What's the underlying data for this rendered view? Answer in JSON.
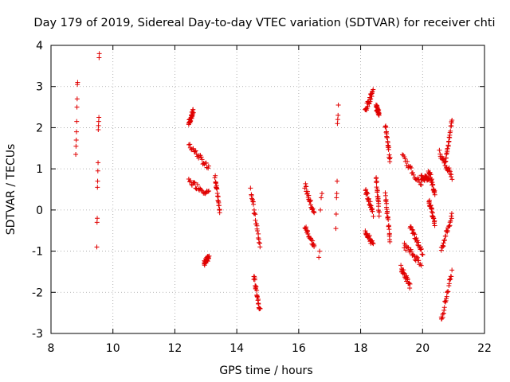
{
  "chart_data": {
    "type": "scatter",
    "title": "Day 179 of 2019, Sidereal Day-to-day VTEC variation (SDTVAR) for receiver chti",
    "xlabel": "GPS time / hours",
    "ylabel": "SDTVAR / TECUs",
    "xlim": [
      8,
      22
    ],
    "ylim": [
      -3,
      4
    ],
    "xticks": [
      8,
      10,
      12,
      14,
      16,
      18,
      20,
      22
    ],
    "yticks": [
      -3,
      -2,
      -1,
      0,
      1,
      2,
      3,
      4
    ],
    "grid": true,
    "marker": "plus",
    "color": "#e00000",
    "segments": [
      {
        "x0": 8.8,
        "x1": 8.86,
        "y": [
          1.35,
          1.55,
          1.7,
          1.9,
          2.15,
          2.5,
          2.7,
          3.05,
          3.1
        ]
      },
      {
        "x0": 9.48,
        "x1": 9.56,
        "y": [
          -0.9,
          -0.3,
          -0.2,
          0.55,
          0.7,
          0.95,
          1.15,
          1.95,
          2.05,
          2.15,
          2.25,
          3.7,
          3.8
        ]
      },
      {
        "x0": 12.45,
        "x1": 12.6,
        "from": 2.1,
        "to": 2.4
      },
      {
        "x0": 12.45,
        "x1": 13.1,
        "from": 1.6,
        "to": 1.0
      },
      {
        "x0": 12.45,
        "x1": 13.1,
        "from": 0.7,
        "to": 0.4
      },
      {
        "x0": 12.95,
        "x1": 13.1,
        "from": -1.3,
        "to": -1.15
      },
      {
        "x0": 13.3,
        "x1": 13.45,
        "from": 0.8,
        "to": 0.0
      },
      {
        "x0": 14.45,
        "x1": 14.75,
        "from": 0.5,
        "to": -0.9
      },
      {
        "x0": 14.55,
        "x1": 14.75,
        "from": -1.6,
        "to": -2.45
      },
      {
        "x0": 16.2,
        "x1": 16.5,
        "from": 0.6,
        "to": -0.1
      },
      {
        "x0": 16.2,
        "x1": 16.5,
        "from": -0.4,
        "to": -0.9
      },
      {
        "x0": 16.65,
        "x1": 16.75,
        "y": [
          -1.15,
          -1.0,
          0.0,
          0.3,
          0.4
        ]
      },
      {
        "x0": 17.2,
        "x1": 17.28,
        "y": [
          -0.45,
          -0.1,
          0.3,
          0.4,
          0.7,
          2.1,
          2.2,
          2.3,
          2.55
        ]
      },
      {
        "x0": 18.15,
        "x1": 18.4,
        "from": 2.4,
        "to": 2.9
      },
      {
        "x0": 18.15,
        "x1": 18.4,
        "from": 0.5,
        "to": -0.1
      },
      {
        "x0": 18.15,
        "x1": 18.4,
        "from": -0.5,
        "to": -0.85
      },
      {
        "x0": 18.5,
        "x1": 18.6,
        "from": 2.5,
        "to": 2.35
      },
      {
        "x0": 18.5,
        "x1": 18.6,
        "from": 0.8,
        "to": -0.1
      },
      {
        "x0": 18.8,
        "x1": 18.95,
        "from": 2.05,
        "to": 1.2
      },
      {
        "x0": 18.8,
        "x1": 18.95,
        "from": 0.4,
        "to": -0.75
      },
      {
        "x0": 19.3,
        "x1": 19.6,
        "from": -1.4,
        "to": -1.85
      },
      {
        "x0": 19.35,
        "x1": 19.95,
        "from": 1.3,
        "to": 0.6
      },
      {
        "x0": 19.4,
        "x1": 19.95,
        "from": -0.85,
        "to": -1.3
      },
      {
        "x0": 19.6,
        "x1": 20.0,
        "from": -0.4,
        "to": -1.05
      },
      {
        "x0": 19.95,
        "x1": 20.2,
        "from": 0.8,
        "to": 0.75
      },
      {
        "x0": 20.2,
        "x1": 20.4,
        "from": 1.0,
        "to": 0.35
      },
      {
        "x0": 20.2,
        "x1": 20.4,
        "from": 0.25,
        "to": -0.35
      },
      {
        "x0": 20.55,
        "x1": 20.95,
        "from": 1.4,
        "to": 0.8
      },
      {
        "x0": 20.6,
        "x1": 20.95,
        "from": -2.7,
        "to": -1.5
      },
      {
        "x0": 20.6,
        "x1": 20.95,
        "from": -0.95,
        "to": -0.15
      },
      {
        "x0": 20.75,
        "x1": 20.95,
        "from": 1.2,
        "to": 2.2
      }
    ]
  }
}
